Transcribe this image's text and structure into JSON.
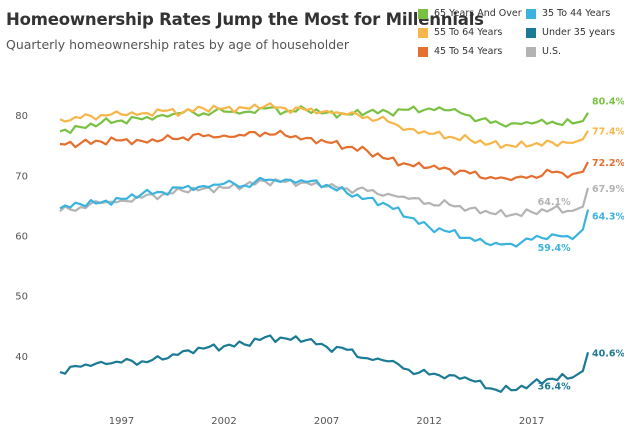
{
  "chart_data": {
    "type": "line",
    "title": "Homeownership Rates Jump the Most for Millennials",
    "subtitle": "Quarterly homeownership rates by age of householder",
    "xlabel": "",
    "ylabel": "",
    "x_range": [
      "1994-01",
      "2019-10"
    ],
    "ylim": [
      33,
      85
    ],
    "x_ticks": [
      "1997",
      "2002",
      "2007",
      "2012",
      "2017"
    ],
    "y_ticks": [
      "40",
      "50",
      "60",
      "70",
      "80"
    ],
    "grid": false,
    "legend_position": "top-right",
    "x": [
      "1994",
      "1995",
      "1996",
      "1997",
      "1998",
      "1999",
      "2000",
      "2001",
      "2002",
      "2003",
      "2004",
      "2005",
      "2006",
      "2007",
      "2008",
      "2009",
      "2010",
      "2011",
      "2012",
      "2013",
      "2014",
      "2015",
      "2016",
      "2017",
      "2018",
      "2019",
      "2019-Q3",
      "2019-Q4"
    ],
    "series": [
      {
        "name": "65 Years And Over",
        "color": "#7ac143",
        "values": [
          77.3,
          78.0,
          78.7,
          79.1,
          79.3,
          80.0,
          80.4,
          80.3,
          80.6,
          80.5,
          81.1,
          80.6,
          80.9,
          80.4,
          80.1,
          80.5,
          80.5,
          80.9,
          81.1,
          80.8,
          79.9,
          78.7,
          78.6,
          78.6,
          78.9,
          78.6,
          79.0,
          80.4
        ]
      },
      {
        "name": "55 To 64 Years",
        "color": "#f6b64a",
        "values": [
          79.3,
          79.5,
          80.0,
          80.1,
          80.3,
          80.7,
          80.5,
          81.1,
          81.1,
          81.2,
          81.5,
          81.1,
          80.8,
          80.7,
          80.1,
          79.7,
          78.9,
          77.7,
          76.9,
          76.4,
          75.9,
          75.3,
          74.9,
          75.0,
          75.5,
          75.4,
          76.0,
          77.4
        ]
      },
      {
        "name": "45 To 54 Years",
        "color": "#e46f2e",
        "values": [
          75.2,
          75.3,
          75.6,
          75.8,
          75.7,
          75.9,
          76.3,
          76.5,
          76.6,
          76.6,
          77.1,
          76.6,
          76.2,
          75.5,
          74.7,
          74.0,
          72.7,
          71.8,
          71.3,
          71.0,
          70.3,
          69.7,
          69.2,
          69.9,
          70.5,
          70.2,
          70.6,
          72.2
        ]
      },
      {
        "name": "U.S.",
        "color": "#b3b3b3",
        "values": [
          64.0,
          64.7,
          65.4,
          65.8,
          66.3,
          66.8,
          67.4,
          67.8,
          67.9,
          68.3,
          69.0,
          68.9,
          68.8,
          68.1,
          67.8,
          67.4,
          66.9,
          66.1,
          65.4,
          65.1,
          64.5,
          63.7,
          63.4,
          63.9,
          64.4,
          64.1,
          64.8,
          67.9
        ]
      },
      {
        "name": "35 To 44 Years",
        "color": "#3ab3de",
        "values": [
          64.5,
          65.2,
          65.5,
          66.1,
          66.9,
          67.2,
          67.9,
          68.2,
          68.6,
          68.3,
          69.2,
          69.3,
          68.9,
          68.4,
          67.0,
          66.2,
          65.0,
          63.0,
          61.4,
          60.6,
          59.6,
          58.4,
          58.6,
          59.3,
          60.2,
          59.4,
          61.0,
          64.3
        ]
      },
      {
        "name": "Under 35 years",
        "color": "#1b7a95",
        "values": [
          37.3,
          38.2,
          39.0,
          38.9,
          39.1,
          39.4,
          40.8,
          41.2,
          41.6,
          41.9,
          43.1,
          42.9,
          42.6,
          41.5,
          41.0,
          39.6,
          39.1,
          37.7,
          36.9,
          36.8,
          36.0,
          34.6,
          34.3,
          35.4,
          36.2,
          36.4,
          37.5,
          40.6
        ]
      }
    ],
    "end_labels": [
      {
        "series": "65 Years And Over",
        "text": "80.4%"
      },
      {
        "series": "55 To 64 Years",
        "text": "77.4%"
      },
      {
        "series": "45 To 54 Years",
        "text": "72.2%"
      },
      {
        "series": "U.S.",
        "text": "67.9%"
      },
      {
        "series": "35 To 44 Years",
        "text": "64.3%"
      },
      {
        "series": "Under 35 years",
        "text": "40.6%"
      }
    ],
    "annotations": [
      {
        "series": "U.S.",
        "text": "64.1%"
      },
      {
        "series": "35 To 44 Years",
        "text": "59.4%"
      },
      {
        "series": "Under 35 years",
        "text": "36.4%"
      }
    ]
  }
}
